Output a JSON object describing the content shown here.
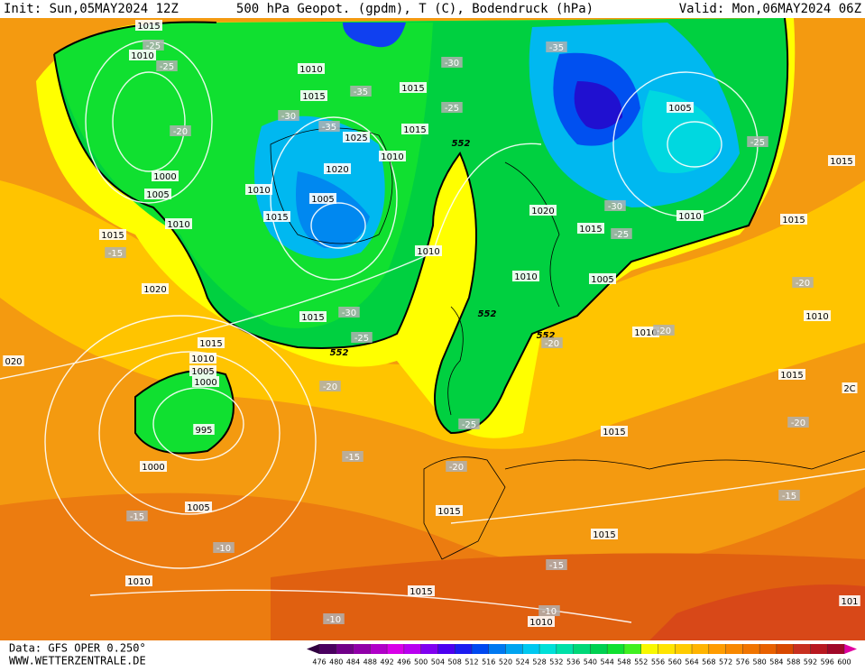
{
  "header": {
    "init": "Init: Sun,05MAY2024 12Z",
    "title": "500 hPa Geopot. (gpdm), T (C), Bodendruck (hPa)",
    "valid": "Valid: Mon,06MAY2024 06Z"
  },
  "footer": {
    "data": "Data: GFS OPER 0.250°",
    "site": "WWW.WETTERZENTRALE.DE"
  },
  "colorbar": {
    "ticks": [
      476,
      480,
      484,
      488,
      492,
      496,
      500,
      504,
      508,
      512,
      516,
      520,
      524,
      528,
      532,
      536,
      540,
      544,
      548,
      552,
      556,
      560,
      564,
      568,
      572,
      576,
      580,
      584,
      588,
      592,
      596,
      600
    ],
    "colors": [
      "#4a0060",
      "#700088",
      "#9000a8",
      "#b000c8",
      "#d800e8",
      "#b800f0",
      "#8000f0",
      "#4c00f0",
      "#1c1cf0",
      "#0048f0",
      "#0078f0",
      "#00a4f0",
      "#00c8f0",
      "#00e0d8",
      "#00e0a8",
      "#00d878",
      "#00d050",
      "#10e030",
      "#40f020",
      "#f8f800",
      "#ffe400",
      "#ffcc00",
      "#ffb400",
      "#ff9c00",
      "#f88800",
      "#f07400",
      "#e86000",
      "#d84800",
      "#c83020",
      "#b81820",
      "#a00828"
    ],
    "low_color": "#300040",
    "high_color": "#e000a0"
  },
  "map_labels": [
    "1015",
    "-25",
    "1010",
    "-25",
    "-20",
    "1000",
    "1005",
    "1010",
    "1015",
    "-15",
    "1020",
    "020",
    "1015",
    "1010",
    "1005",
    "1000",
    "995",
    "1000",
    "1005",
    "-15",
    "-10",
    "1010",
    "-10",
    "1010",
    "1015",
    "-35",
    "-30",
    "-35",
    "1025",
    "1020",
    "1010",
    "1005",
    "1010",
    "1015",
    "1015",
    "1015",
    "1010",
    "1015",
    "-30",
    "-25",
    "552",
    "-20",
    "-15",
    "-20",
    "1015",
    "1015",
    "-30",
    "-25",
    "552",
    "552",
    "-25",
    "1020",
    "1010",
    "1015",
    "-30",
    "-25",
    "1005",
    "552",
    "-20",
    "1015",
    "-35",
    "1005",
    "-25",
    "1010",
    "1015",
    "1015",
    "-20",
    "1010",
    "1010",
    "-20",
    "1015",
    "2C",
    "-20",
    "-15",
    "1015",
    "-15",
    "-10",
    "1010",
    "101"
  ]
}
